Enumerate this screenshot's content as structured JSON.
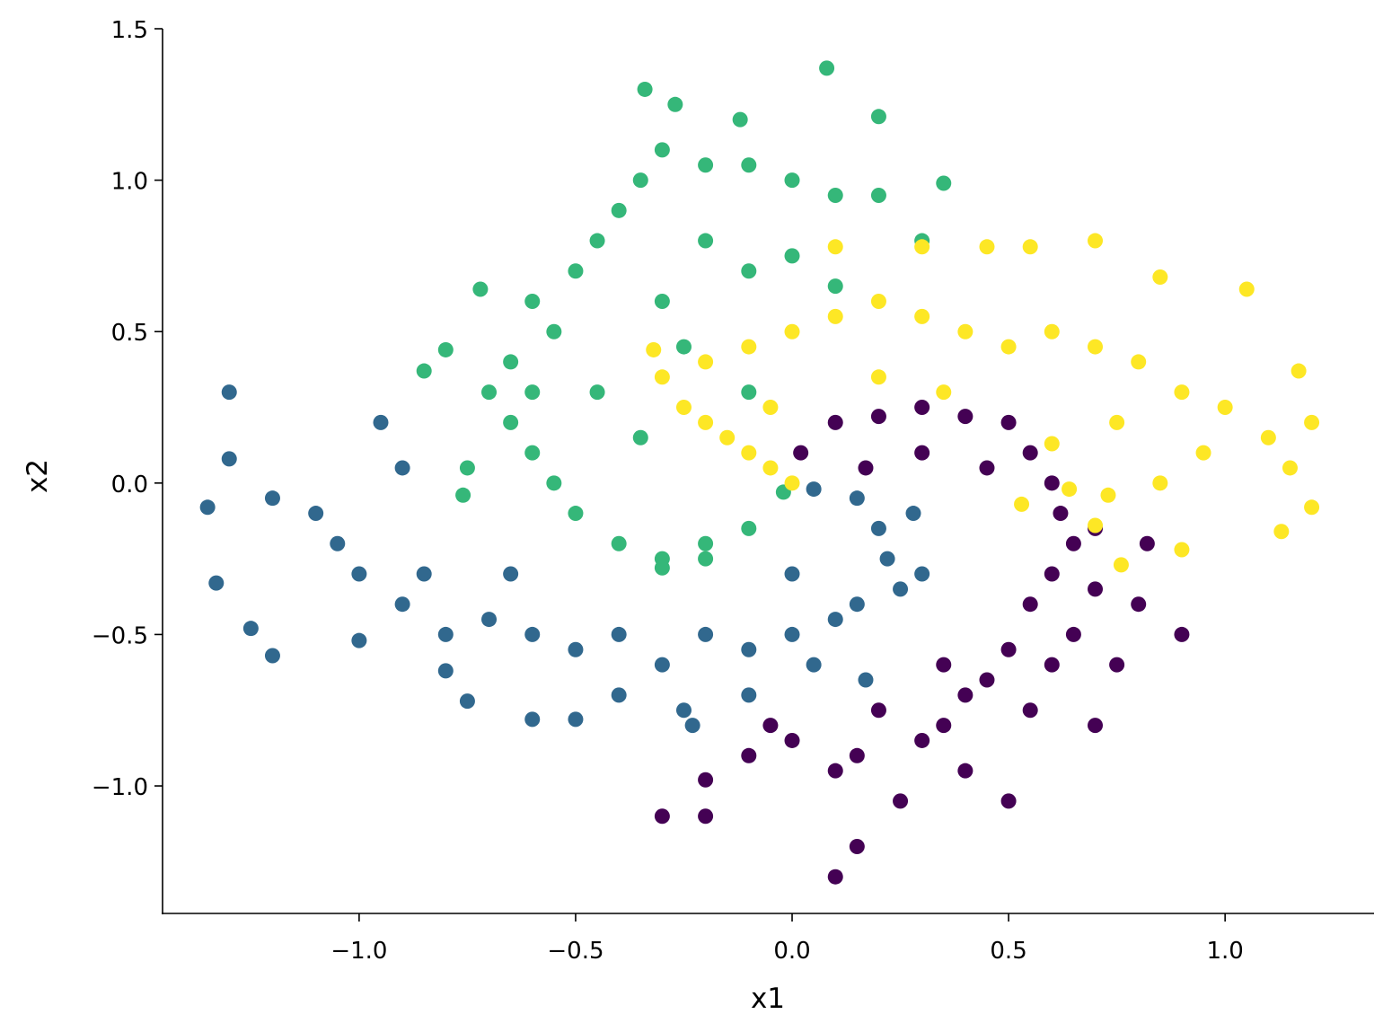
{
  "chart_data": {
    "type": "scatter",
    "xlabel": "x1",
    "ylabel": "x2",
    "xlim": [
      -1.454,
      1.344
    ],
    "ylim": [
      -1.421,
      1.5
    ],
    "xticks": [
      {
        "value": -1,
        "label": "−1.0"
      },
      {
        "value": -0.5,
        "label": "−0.5"
      },
      {
        "value": 0,
        "label": "0.0"
      },
      {
        "value": 0.5,
        "label": "0.5"
      },
      {
        "value": 1,
        "label": "1.0"
      }
    ],
    "yticks": [
      {
        "value": -1,
        "label": "−1.0"
      },
      {
        "value": -0.5,
        "label": "−0.5"
      },
      {
        "value": 0,
        "label": "0.0"
      },
      {
        "value": 0.5,
        "label": "0.5"
      },
      {
        "value": 1,
        "label": "1.0"
      },
      {
        "value": 1.5,
        "label": "1.5"
      }
    ],
    "series": [
      {
        "color": "#440154",
        "x": [
          0.02,
          0.1,
          0.2,
          0.3,
          0.4,
          0.5,
          0.55,
          0.6,
          0.62,
          0.65,
          0.6,
          0.7,
          0.55,
          0.65,
          0.5,
          0.6,
          0.45,
          0.55,
          0.4,
          0.35,
          0.3,
          0.2,
          0.15,
          0.1,
          0.0,
          -0.1,
          -0.2,
          -0.3,
          -0.2,
          0.1,
          0.15,
          0.25,
          0.4,
          0.5,
          0.7,
          0.75,
          0.8,
          0.82,
          0.3,
          0.45,
          0.7,
          0.17,
          0.9,
          -0.05,
          0.35
        ],
        "y": [
          0.1,
          0.2,
          0.22,
          0.25,
          0.22,
          0.2,
          0.1,
          0.0,
          -0.1,
          -0.2,
          -0.3,
          -0.35,
          -0.4,
          -0.5,
          -0.55,
          -0.6,
          -0.65,
          -0.75,
          -0.7,
          -0.8,
          -0.85,
          -0.75,
          -0.9,
          -0.95,
          -0.85,
          -0.9,
          -0.98,
          -1.1,
          -1.1,
          -1.3,
          -1.2,
          -1.05,
          -0.95,
          -1.05,
          -0.8,
          -0.6,
          -0.4,
          -0.2,
          0.1,
          0.05,
          -0.15,
          0.05,
          -0.5,
          -0.8,
          -0.6
        ]
      },
      {
        "color": "#31688e",
        "x": [
          0.05,
          0.15,
          0.2,
          0.22,
          0.25,
          0.15,
          0.1,
          0.0,
          -0.1,
          -0.2,
          -0.3,
          -0.4,
          -0.5,
          -0.6,
          -0.7,
          -0.8,
          -0.9,
          -1.0,
          -1.05,
          -1.1,
          -1.2,
          -1.3,
          -1.3,
          -1.35,
          -1.33,
          -1.25,
          -1.2,
          -1.0,
          -0.8,
          -0.75,
          -0.6,
          -0.5,
          -0.4,
          -0.25,
          -0.1,
          0.05,
          0.3,
          0.28,
          -0.85,
          -0.95,
          -0.9,
          -0.65,
          0.17,
          -0.23,
          0.0
        ],
        "y": [
          -0.02,
          -0.05,
          -0.15,
          -0.25,
          -0.35,
          -0.4,
          -0.45,
          -0.5,
          -0.55,
          -0.5,
          -0.6,
          -0.5,
          -0.55,
          -0.5,
          -0.45,
          -0.5,
          -0.4,
          -0.3,
          -0.2,
          -0.1,
          -0.05,
          0.08,
          0.3,
          -0.08,
          -0.33,
          -0.48,
          -0.57,
          -0.52,
          -0.62,
          -0.72,
          -0.78,
          -0.78,
          -0.7,
          -0.75,
          -0.7,
          -0.6,
          -0.3,
          -0.1,
          -0.3,
          0.2,
          0.05,
          -0.3,
          -0.65,
          -0.8,
          -0.3
        ]
      },
      {
        "color": "#35b779",
        "x": [
          -0.02,
          -0.1,
          -0.2,
          -0.3,
          -0.4,
          -0.5,
          -0.55,
          -0.6,
          -0.65,
          -0.6,
          -0.65,
          -0.55,
          -0.6,
          -0.5,
          -0.45,
          -0.4,
          -0.35,
          -0.3,
          -0.2,
          -0.1,
          0.0,
          0.1,
          0.2,
          0.3,
          0.35,
          0.08,
          -0.34,
          -0.27,
          -0.12,
          0.2,
          -0.8,
          -0.85,
          -0.72,
          -0.75,
          -0.76,
          -0.3,
          -0.25,
          -0.2,
          -0.1,
          0.0,
          -0.45,
          -0.35,
          -0.1,
          -0.7,
          0.1,
          -0.3,
          -0.2
        ],
        "y": [
          -0.03,
          -0.15,
          -0.2,
          -0.25,
          -0.2,
          -0.1,
          0.0,
          0.1,
          0.2,
          0.3,
          0.4,
          0.5,
          0.6,
          0.7,
          0.8,
          0.9,
          1.0,
          1.1,
          1.05,
          1.05,
          1.0,
          0.95,
          0.95,
          0.8,
          0.99,
          1.37,
          1.3,
          1.25,
          1.2,
          1.21,
          0.44,
          0.37,
          0.64,
          0.05,
          -0.04,
          0.6,
          0.45,
          0.8,
          0.7,
          0.75,
          0.3,
          0.15,
          0.3,
          0.3,
          0.65,
          -0.28,
          -0.25
        ]
      },
      {
        "color": "#fde725",
        "x": [
          0.0,
          -0.05,
          -0.1,
          -0.15,
          -0.2,
          -0.25,
          -0.3,
          -0.2,
          -0.1,
          0.0,
          0.1,
          0.2,
          0.3,
          0.4,
          0.5,
          0.6,
          0.7,
          0.8,
          0.9,
          1.0,
          1.1,
          1.15,
          1.2,
          1.2,
          1.13,
          1.05,
          0.85,
          0.7,
          0.55,
          0.45,
          0.3,
          0.1,
          0.53,
          0.64,
          0.7,
          0.76,
          0.73,
          0.9,
          1.17,
          0.6,
          0.75,
          0.35,
          -0.05,
          0.95,
          0.85,
          -0.32,
          0.2
        ],
        "y": [
          0.0,
          0.05,
          0.1,
          0.15,
          0.2,
          0.25,
          0.35,
          0.4,
          0.45,
          0.5,
          0.55,
          0.6,
          0.55,
          0.5,
          0.45,
          0.5,
          0.45,
          0.4,
          0.3,
          0.25,
          0.15,
          0.05,
          -0.08,
          0.2,
          -0.16,
          0.64,
          0.68,
          0.8,
          0.78,
          0.78,
          0.78,
          0.78,
          -0.07,
          -0.02,
          -0.14,
          -0.27,
          -0.04,
          -0.22,
          0.37,
          0.13,
          0.2,
          0.3,
          0.25,
          0.1,
          0.0,
          0.44,
          0.35
        ]
      }
    ]
  }
}
